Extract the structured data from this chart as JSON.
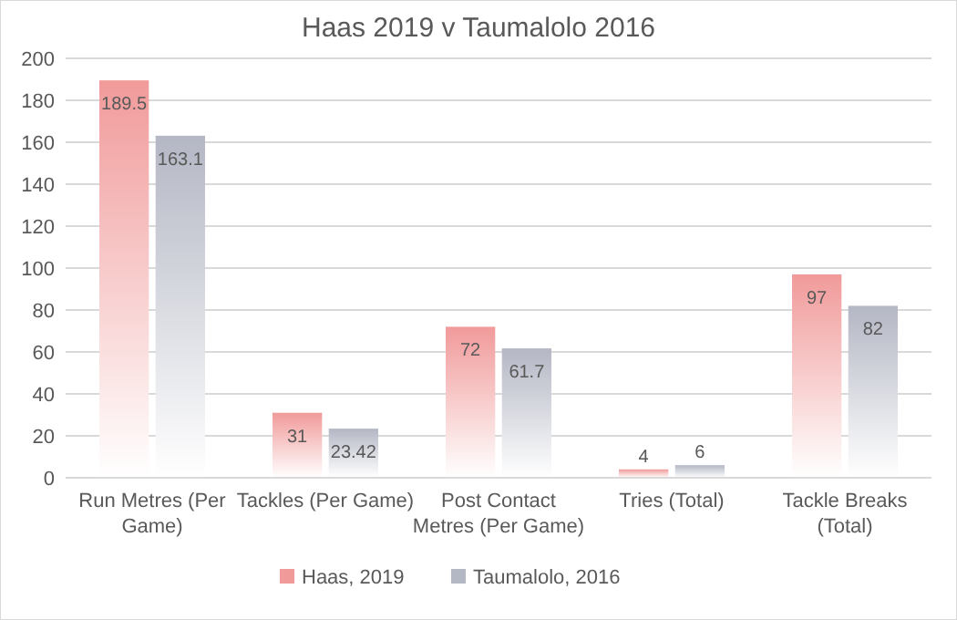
{
  "chart_data": {
    "type": "bar",
    "title": "Haas 2019 v Taumalolo 2016",
    "categories": [
      "Run Metres (Per Game)",
      "Tackles (Per Game)",
      "Post Contact Metres (Per Game)",
      "Tries (Total)",
      "Tackle Breaks (Total)"
    ],
    "series": [
      {
        "name": "Haas, 2019",
        "color": "#f19a9a",
        "values": [
          189.5,
          31,
          72,
          4,
          97
        ]
      },
      {
        "name": "Taumalolo, 2016",
        "color": "#b4b7c4",
        "values": [
          163.1,
          23.42,
          61.7,
          6,
          82
        ]
      }
    ],
    "ylim": [
      0,
      200
    ],
    "yticks": [
      0,
      20,
      40,
      60,
      80,
      100,
      120,
      140,
      160,
      180,
      200
    ],
    "grid": "y",
    "legend": "bottom",
    "data_labels": true
  }
}
